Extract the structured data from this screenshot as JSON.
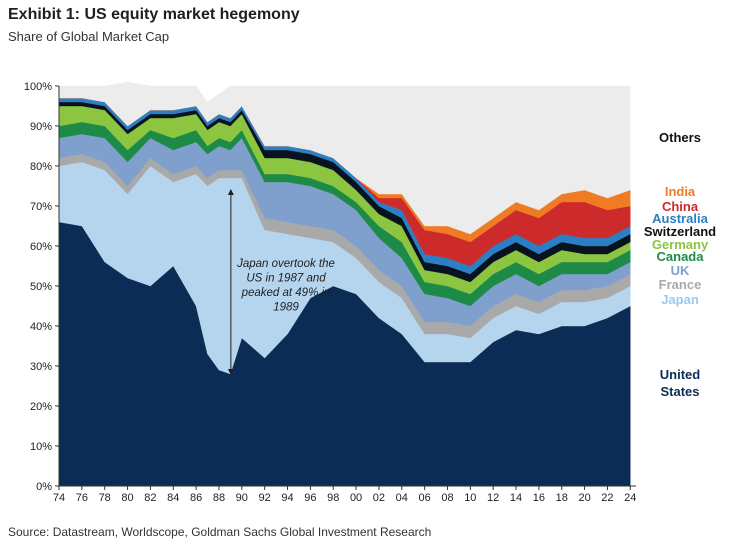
{
  "header": {
    "title": "Exhibit 1: US equity market hegemony",
    "subtitle": "Share of Global Market Cap"
  },
  "footer": {
    "source": "Source: Datastream, Worldscope, Goldman Sachs Global Investment Research"
  },
  "chart_data": {
    "type": "area",
    "stacked": true,
    "x": [
      1974,
      1976,
      1978,
      1980,
      1982,
      1984,
      1986,
      1987,
      1988,
      1989,
      1990,
      1992,
      1994,
      1996,
      1998,
      2000,
      2002,
      2004,
      2006,
      2008,
      2010,
      2012,
      2014,
      2016,
      2018,
      2020,
      2022,
      2024
    ],
    "x_tick_labels": [
      "74",
      "76",
      "78",
      "80",
      "82",
      "84",
      "86",
      "88",
      "90",
      "92",
      "94",
      "96",
      "98",
      "00",
      "02",
      "04",
      "06",
      "08",
      "10",
      "12",
      "14",
      "16",
      "18",
      "20",
      "22",
      "24"
    ],
    "x_tick_years": [
      1974,
      1976,
      1978,
      1980,
      1982,
      1984,
      1986,
      1988,
      1990,
      1992,
      1994,
      1996,
      1998,
      2000,
      2002,
      2004,
      2006,
      2008,
      2010,
      2012,
      2014,
      2016,
      2018,
      2020,
      2022,
      2024
    ],
    "y_tick_labels": [
      "0%",
      "10%",
      "20%",
      "30%",
      "40%",
      "50%",
      "60%",
      "70%",
      "80%",
      "90%",
      "100%"
    ],
    "ylim": [
      0,
      100
    ],
    "y_unit": "%",
    "series": [
      {
        "name": "United States",
        "color": "#0b2d55",
        "values": [
          66,
          65,
          56,
          52,
          50,
          55,
          45,
          33,
          29,
          28,
          37,
          32,
          38,
          47,
          50,
          48,
          42,
          38,
          31,
          31,
          31,
          36,
          39,
          38,
          40,
          40,
          42,
          45
        ]
      },
      {
        "name": "Japan",
        "color": "#b5d5ef",
        "values": [
          14,
          16,
          23,
          21,
          30,
          21,
          33,
          42,
          48,
          49,
          40,
          32,
          25,
          15,
          11,
          9,
          9,
          9,
          7,
          7,
          6,
          6,
          6,
          5,
          6,
          6,
          5,
          5
        ]
      },
      {
        "name": "France",
        "color": "#a9a9a9",
        "values": [
          2,
          2,
          2,
          2,
          2,
          2,
          2,
          2,
          2,
          2,
          2,
          3,
          3,
          3,
          3,
          3,
          3,
          3,
          3,
          3,
          3,
          3,
          3,
          3,
          3,
          3,
          3,
          3
        ]
      },
      {
        "name": "UK",
        "color": "#7f9fcc",
        "values": [
          5,
          5,
          6,
          6,
          5,
          6,
          6,
          6,
          6,
          5,
          8,
          9,
          10,
          10,
          9,
          9,
          8,
          7,
          7,
          6,
          5,
          5,
          5,
          4,
          4,
          4,
          3,
          3
        ]
      },
      {
        "name": "Canada",
        "color": "#1e8a47",
        "values": [
          3,
          3,
          3,
          3,
          2,
          3,
          3,
          2,
          2,
          2,
          2,
          2,
          2,
          2,
          2,
          2,
          3,
          4,
          3,
          3,
          3,
          3,
          3,
          3,
          3,
          3,
          3,
          3
        ]
      },
      {
        "name": "Germany",
        "color": "#8cc641",
        "values": [
          5,
          4,
          4,
          4,
          3,
          5,
          4,
          4,
          4,
          4,
          4,
          4,
          4,
          4,
          4,
          3,
          3,
          4,
          3,
          3,
          3,
          3,
          3,
          3,
          3,
          2,
          2,
          2
        ]
      },
      {
        "name": "Switzerland",
        "color": "#091320",
        "values": [
          1,
          1,
          1,
          1,
          1,
          1,
          1,
          1,
          1,
          1,
          1,
          2,
          2,
          2,
          2,
          2,
          2,
          2,
          2,
          2,
          2,
          2,
          2,
          2,
          2,
          2,
          2,
          2
        ]
      },
      {
        "name": "Australia",
        "color": "#2b7fc4",
        "values": [
          1,
          1,
          1,
          1,
          1,
          1,
          1,
          1,
          1,
          1,
          1,
          1,
          1,
          1,
          1,
          1,
          1,
          2,
          2,
          2,
          2,
          2,
          2,
          2,
          2,
          2,
          2,
          2
        ]
      },
      {
        "name": "China",
        "color": "#cd2b2b",
        "values": [
          0,
          0,
          0,
          0,
          0,
          0,
          0,
          0,
          0,
          0,
          0,
          0,
          0,
          0,
          0,
          0,
          1,
          3,
          6,
          6,
          6,
          5,
          6,
          7,
          8,
          9,
          7,
          5
        ]
      },
      {
        "name": "India",
        "color": "#ef7b25",
        "values": [
          0,
          0,
          0,
          0,
          0,
          0,
          0,
          0,
          0,
          0,
          0,
          0,
          0,
          0,
          0,
          0,
          1,
          1,
          1,
          2,
          2,
          2,
          2,
          2,
          2,
          3,
          3,
          4
        ]
      },
      {
        "name": "Others",
        "color": "#ececec",
        "values": [
          3,
          3,
          4,
          11,
          6,
          6,
          5,
          5,
          5,
          8,
          5,
          15,
          15,
          16,
          18,
          23,
          27,
          27,
          35,
          35,
          37,
          33,
          29,
          31,
          27,
          26,
          28,
          26
        ]
      }
    ],
    "legend_placement": "right",
    "grid": false,
    "annotation": {
      "lines": [
        "Japan overtook the",
        "US in 1987 and",
        "peaked at 49% in",
        "1989"
      ],
      "arrow_year": 1989,
      "arrow_from_pct": 28,
      "arrow_to_pct": 74
    }
  }
}
